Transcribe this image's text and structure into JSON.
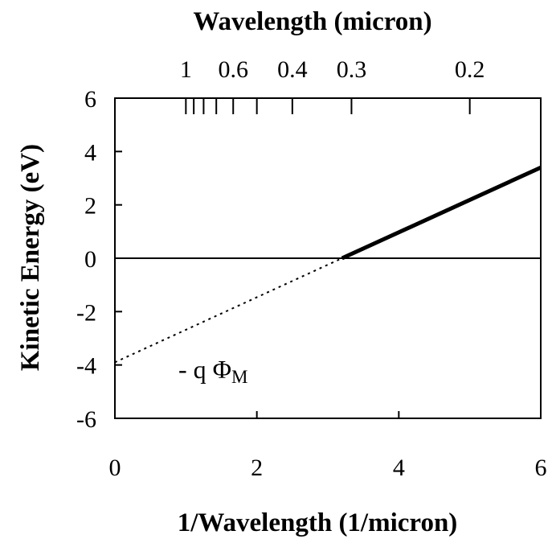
{
  "chart_data": {
    "type": "line",
    "xlabel": "1/Wavelength (1/micron)",
    "ylabel": "Kinetic Energy (eV)",
    "secondary_xlabel": "Wavelength (micron)",
    "xlim": [
      0,
      6
    ],
    "ylim": [
      -6,
      6
    ],
    "xticks": [
      0,
      2,
      4,
      6
    ],
    "yticks": [
      -6,
      -4,
      -2,
      0,
      2,
      4,
      6
    ],
    "secondary_xticks": [
      {
        "label": "1",
        "value": 1
      },
      {
        "label": "0.6",
        "value": 0.6
      },
      {
        "label": "0.4",
        "value": 0.4
      },
      {
        "label": "0.3",
        "value": 0.3
      },
      {
        "label": "0.2",
        "value": 0.2
      }
    ],
    "secondary_minor_ticks": [
      1,
      0.9,
      0.8,
      0.7,
      0.6,
      0.5,
      0.4,
      0.3,
      0.2
    ],
    "grid": false,
    "series": [
      {
        "style": "dotted",
        "x": [
          0,
          3.2
        ],
        "y": [
          -3.9,
          0
        ]
      },
      {
        "style": "solid-thick",
        "x": [
          3.2,
          6
        ],
        "y": [
          0,
          3.4
        ]
      }
    ],
    "reference_lines": [
      {
        "axis": "y",
        "value": 0
      }
    ],
    "annotation": {
      "text": "- q Φ",
      "subscript": "M",
      "x": 0.9,
      "y": -4
    }
  }
}
